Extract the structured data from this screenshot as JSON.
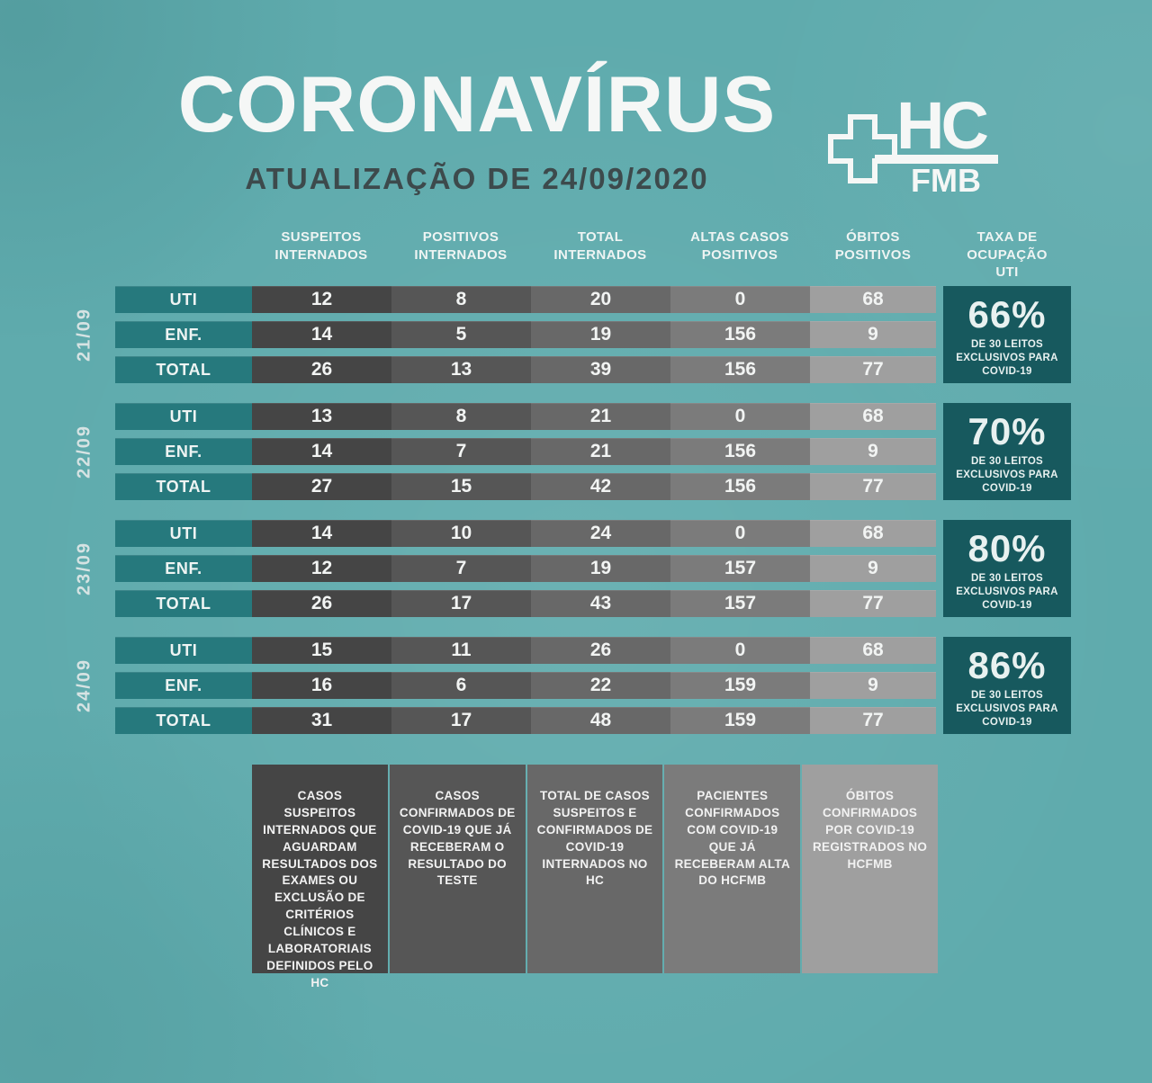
{
  "header": {
    "title": "CORONAVÍRUS",
    "subtitle": "ATUALIZAÇÃO DE 24/09/2020",
    "logo": {
      "hc": "HC",
      "fmb": "FMB"
    }
  },
  "table": {
    "column_headers": [
      "SUSPEITOS INTERNADOS",
      "POSITIVOS INTERNADOS",
      "TOTAL INTERNADOS",
      "ALTAS CASOS POSITIVOS",
      "ÓBITOS POSITIVOS",
      "TAXA DE OCUPAÇÃO UTI"
    ],
    "row_labels": [
      "UTI",
      "ENF.",
      "TOTAL"
    ],
    "occupancy_note": "DE 30 LEITOS EXCLUSIVOS PARA COVID-19",
    "blocks": [
      {
        "date": "21/09",
        "occupancy": "66%",
        "rows": [
          [
            "12",
            "8",
            "20",
            "0",
            "68"
          ],
          [
            "14",
            "5",
            "19",
            "156",
            "9"
          ],
          [
            "26",
            "13",
            "39",
            "156",
            "77"
          ]
        ]
      },
      {
        "date": "22/09",
        "occupancy": "70%",
        "rows": [
          [
            "13",
            "8",
            "21",
            "0",
            "68"
          ],
          [
            "14",
            "7",
            "21",
            "156",
            "9"
          ],
          [
            "27",
            "15",
            "42",
            "156",
            "77"
          ]
        ]
      },
      {
        "date": "23/09",
        "occupancy": "80%",
        "rows": [
          [
            "14",
            "10",
            "24",
            "0",
            "68"
          ],
          [
            "12",
            "7",
            "19",
            "157",
            "9"
          ],
          [
            "26",
            "17",
            "43",
            "157",
            "77"
          ]
        ]
      },
      {
        "date": "24/09",
        "occupancy": "86%",
        "rows": [
          [
            "15",
            "11",
            "26",
            "0",
            "68"
          ],
          [
            "16",
            "6",
            "22",
            "159",
            "9"
          ],
          [
            "31",
            "17",
            "48",
            "159",
            "77"
          ]
        ]
      }
    ]
  },
  "footnotes": [
    "CASOS SUSPEITOS INTERNADOS QUE AGUARDAM RESULTADOS DOS EXAMES OU EXCLUSÃO DE CRITÉRIOS CLÍNICOS E LABORATORIAIS DEFINIDOS PELO HC",
    "CASOS CONFIRMADOS DE COVID-19 QUE JÁ RECEBERAM O RESULTADO DO TESTE",
    "TOTAL DE CASOS SUSPEITOS E CONFIRMADOS DE COVID-19 INTERNADOS NO HC",
    "PACIENTES CONFIRMADOS COM COVID-19 QUE JÁ RECEBERAM ALTA DO HCFMB",
    "ÓBITOS CONFIRMADOS POR COVID-19 REGISTRADOS NO HCFMB"
  ],
  "colors": {
    "background": "#5fabad",
    "label_teal": "#26797d",
    "occupancy_teal": "#17595e",
    "column_greys": [
      "#454545",
      "#565656",
      "#686868",
      "#7b7b7b",
      "#9f9f9f"
    ],
    "title_white": "#f5f7f6",
    "subtitle_dark": "#3d4a4c"
  },
  "chart_data": {
    "type": "table",
    "title": "CORONAVÍRUS — ATUALIZAÇÃO DE 24/09/2020",
    "columns": [
      "SUSPEITOS INTERNADOS",
      "POSITIVOS INTERNADOS",
      "TOTAL INTERNADOS",
      "ALTAS CASOS POSITIVOS",
      "ÓBITOS POSITIVOS"
    ],
    "row_labels": [
      "UTI",
      "ENF.",
      "TOTAL"
    ],
    "by_date": {
      "21/09": {
        "UTI": [
          12,
          8,
          20,
          0,
          68
        ],
        "ENF.": [
          14,
          5,
          19,
          156,
          9
        ],
        "TOTAL": [
          26,
          13,
          39,
          156,
          77
        ],
        "taxa_ocupacao_uti": "66%"
      },
      "22/09": {
        "UTI": [
          13,
          8,
          21,
          0,
          68
        ],
        "ENF.": [
          14,
          7,
          21,
          156,
          9
        ],
        "TOTAL": [
          27,
          15,
          42,
          156,
          77
        ],
        "taxa_ocupacao_uti": "70%"
      },
      "23/09": {
        "UTI": [
          14,
          10,
          24,
          0,
          68
        ],
        "ENF.": [
          12,
          7,
          19,
          157,
          9
        ],
        "TOTAL": [
          26,
          17,
          43,
          157,
          77
        ],
        "taxa_ocupacao_uti": "80%"
      },
      "24/09": {
        "UTI": [
          15,
          11,
          26,
          0,
          68
        ],
        "ENF.": [
          16,
          6,
          22,
          159,
          9
        ],
        "TOTAL": [
          31,
          17,
          48,
          159,
          77
        ],
        "taxa_ocupacao_uti": "86%"
      }
    },
    "occupancy_note": "DE 30 LEITOS EXCLUSIVOS PARA COVID-19",
    "legend_position": "none",
    "grid": false
  }
}
